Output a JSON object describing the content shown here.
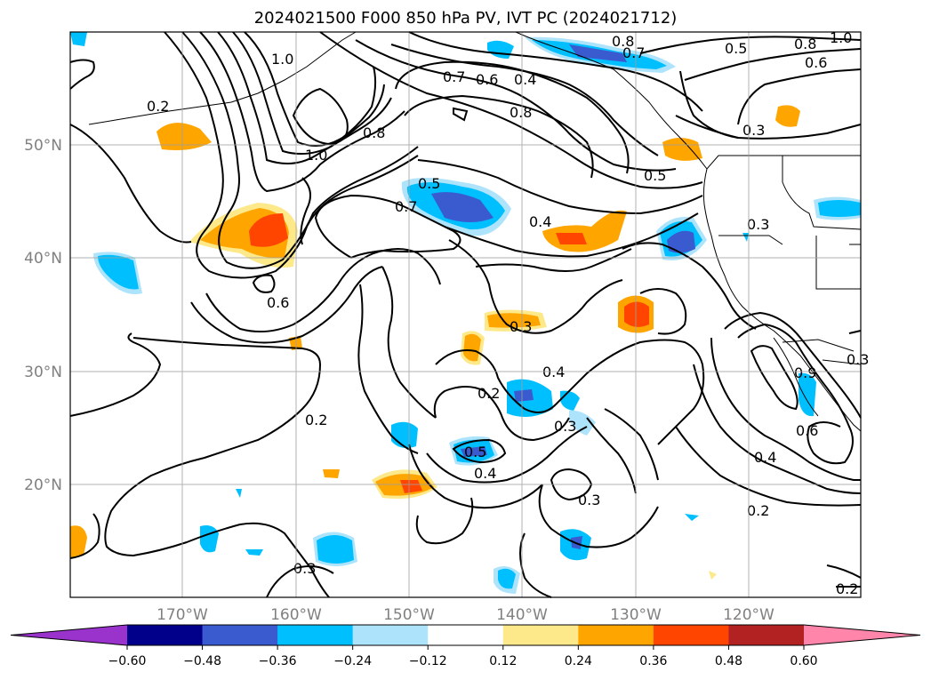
{
  "title": "2024021500 F000 850 hPa PV, IVT PC (2024021712)",
  "map": {
    "lon_labels": [
      "170°W",
      "160°W",
      "150°W",
      "140°W",
      "130°W",
      "120°W"
    ],
    "lat_labels": [
      "50°N",
      "40°N",
      "30°N",
      "20°N"
    ],
    "contour_labels": [
      "1.0",
      "0.2",
      "1.0",
      "0.8",
      "0.7",
      "0.6",
      "0.4",
      "0.8",
      "0.8",
      "0.7",
      "0.5",
      "0.8",
      "0.6",
      "1.0",
      "0.3",
      "0.5",
      "0.5",
      "0.7",
      "0.4",
      "0.3",
      "0.6",
      "0.3",
      "0.4",
      "0.2",
      "0.2",
      "0.5",
      "0.4",
      "0.3",
      "0.3",
      "0.6",
      "0.4",
      "0.2",
      "0.3",
      "0.9",
      "0.2",
      "0.3"
    ]
  },
  "colorbar": {
    "ticks": [
      "−0.60",
      "−0.48",
      "−0.36",
      "−0.24",
      "−0.12",
      "0.12",
      "0.24",
      "0.36",
      "0.48",
      "0.60"
    ],
    "colors": [
      "#9933cc",
      "#00008b",
      "#3a5ad0",
      "#00bfff",
      "#aee4fb",
      "#ffffff",
      "#fde98a",
      "#ffa500",
      "#ff4500",
      "#b22222",
      "#ff85ab"
    ]
  }
}
